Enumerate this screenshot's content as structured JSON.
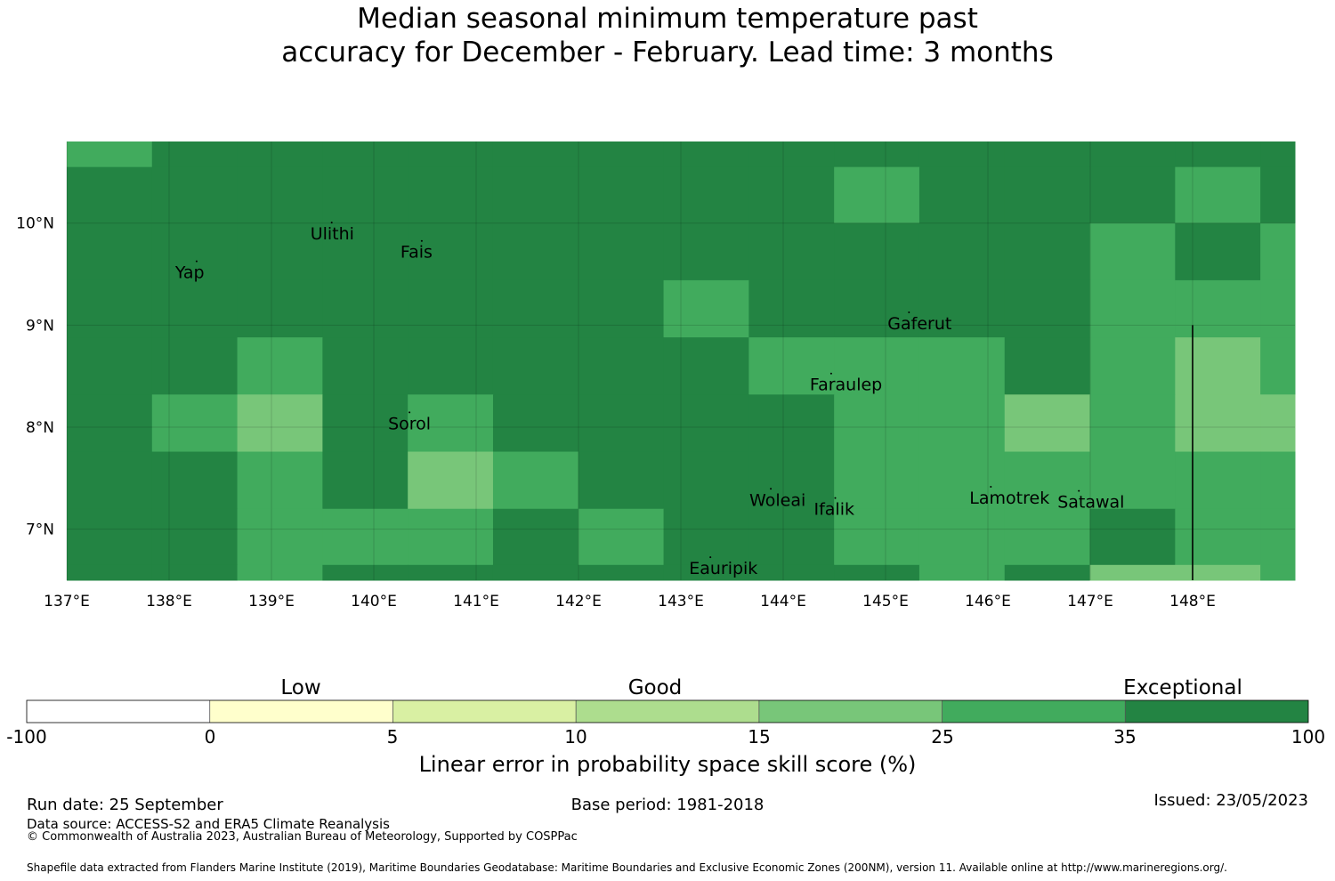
{
  "title": {
    "line1": "Median seasonal minimum temperature past",
    "line2": "accuracy for December - February. Lead time: 3 months"
  },
  "map": {
    "lon_labels": [
      "137°E",
      "138°E",
      "139°E",
      "140°E",
      "141°E",
      "142°E",
      "143°E",
      "144°E",
      "145°E",
      "146°E",
      "147°E",
      "148°E"
    ],
    "lat_labels": [
      "10°N",
      "9°N",
      "8°N",
      "7°N"
    ],
    "lon_range": [
      137.0,
      149.0
    ],
    "lat_range": [
      6.5,
      10.8
    ],
    "grid_lon_start": 137.0,
    "grid_lon_step": 0.833,
    "grid_lat_edges": [
      10.8,
      10.55,
      10.0,
      9.44,
      8.88,
      8.32,
      7.76,
      7.2,
      6.65,
      6.5
    ],
    "categories_rows": [
      [
        5,
        6,
        6,
        6,
        6,
        6,
        6,
        6,
        6,
        6,
        6,
        6,
        6,
        6,
        6
      ],
      [
        6,
        6,
        6,
        6,
        6,
        6,
        6,
        6,
        6,
        5,
        6,
        6,
        6,
        5,
        6
      ],
      [
        6,
        6,
        6,
        6,
        6,
        6,
        6,
        6,
        6,
        6,
        6,
        6,
        5,
        6,
        5
      ],
      [
        6,
        6,
        6,
        6,
        6,
        6,
        6,
        5,
        6,
        6,
        6,
        6,
        5,
        5,
        5
      ],
      [
        6,
        6,
        5,
        6,
        6,
        6,
        6,
        6,
        5,
        5,
        5,
        6,
        5,
        4,
        5
      ],
      [
        6,
        5,
        4,
        6,
        5,
        6,
        6,
        6,
        6,
        5,
        5,
        4,
        5,
        4,
        4
      ],
      [
        6,
        6,
        5,
        6,
        4,
        5,
        6,
        6,
        6,
        5,
        5,
        5,
        5,
        5,
        5
      ],
      [
        6,
        6,
        5,
        5,
        5,
        6,
        5,
        6,
        6,
        5,
        5,
        5,
        6,
        5,
        5
      ],
      [
        6,
        6,
        5,
        6,
        6,
        6,
        6,
        6,
        6,
        6,
        5,
        6,
        4,
        4,
        5
      ]
    ],
    "places": [
      {
        "name": "Ulithi",
        "lon": 139.38,
        "lat": 9.84
      },
      {
        "name": "Fais",
        "lon": 140.26,
        "lat": 9.66
      },
      {
        "name": "Yap",
        "lon": 138.06,
        "lat": 9.46
      },
      {
        "name": "Gaferut",
        "lon": 145.02,
        "lat": 8.96
      },
      {
        "name": "Faraulep",
        "lon": 144.26,
        "lat": 8.36
      },
      {
        "name": "Sorol",
        "lon": 140.14,
        "lat": 7.98
      },
      {
        "name": "Woleai",
        "lon": 143.67,
        "lat": 7.23
      },
      {
        "name": "Ifalik",
        "lon": 144.3,
        "lat": 7.14
      },
      {
        "name": "Lamotrek",
        "lon": 145.82,
        "lat": 7.25
      },
      {
        "name": "Satawal",
        "lon": 146.68,
        "lat": 7.21
      },
      {
        "name": "Eauripik",
        "lon": 143.08,
        "lat": 6.56
      }
    ],
    "boundary_lon": 148.0,
    "boundary_lat_top": 9.0
  },
  "colorbar": {
    "colors": [
      "#ffffff",
      "#ffffcc",
      "#d9f0a3",
      "#addd8e",
      "#78c679",
      "#41ab5d",
      "#238443"
    ],
    "ticks": [
      "-100",
      "0",
      "5",
      "10",
      "15",
      "25",
      "35",
      "100"
    ],
    "categories": [
      "Low",
      "Good",
      "Exceptional"
    ],
    "title": "Linear error in probability space skill score (%)"
  },
  "footer": {
    "run_date": "Run date: 25 September",
    "base_period": "Base period: 1981-2018",
    "issued": "Issued: 23/05/2023",
    "data_source": "Data source: ACCESS-S2 and ERA5 Climate Reanalysis",
    "copyright": "© Commonwealth of Australia 2023, Australian Bureau of Meteorology, Supported by COSPPac",
    "shapefile": "Shapefile data extracted from Flanders Marine Institute (2019), Maritime Boundaries Geodatabase: Maritime Boundaries and Exclusive Economic Zones (200NM), version 11. Available online at http://www.marineregions.org/."
  }
}
